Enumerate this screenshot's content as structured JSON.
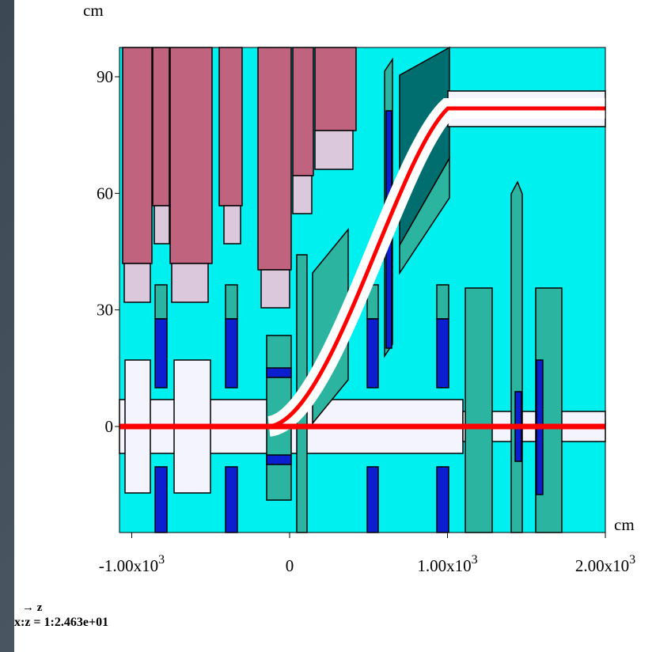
{
  "axes": {
    "y_unit": "cm",
    "x_unit": "cm",
    "yticks": [
      0,
      30,
      60,
      90
    ],
    "xticks": [
      {
        "value": -1000,
        "label": "-1.00x10",
        "exponent": "3"
      },
      0,
      {
        "value": 1000,
        "label": "1.00x10",
        "exponent": "3"
      },
      {
        "value": 2000,
        "label": "2.00x10",
        "exponent": "3"
      }
    ]
  },
  "footer": {
    "axis_arrow": "z",
    "scale": "x:z = 1:2.463e+01"
  }
}
